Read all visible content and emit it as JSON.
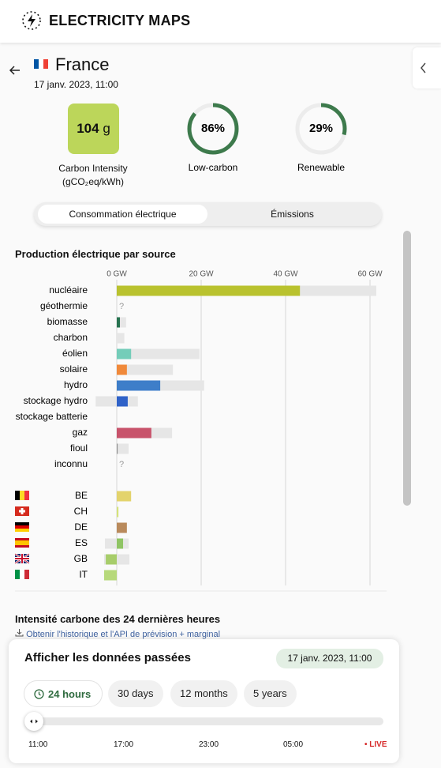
{
  "header": {
    "title": "ELECTRICITY MAPS"
  },
  "zone": {
    "name": "France",
    "datetime": "17 janv. 2023, 11:00"
  },
  "carbon_intensity": {
    "value": 104,
    "unit": "g",
    "label": "Carbon Intensity",
    "unit_label": "(gCO₂eq/kWh)",
    "color": "#bcd65a"
  },
  "low_carbon": {
    "name": "Low-carbon",
    "value": 86,
    "value_label": "86%",
    "color": "#3d7a4c"
  },
  "renewable": {
    "name": "Renewable",
    "value": 29,
    "value_label": "29%",
    "color": "#3d7a4c"
  },
  "tabs": [
    "Consommation électrique",
    "Émissions"
  ],
  "chart_data": {
    "type": "bar",
    "title": "Production électrique par source",
    "categories": [
      "nucléaire",
      "géothermie",
      "biomasse",
      "charbon",
      "éolien",
      "solaire",
      "hydro",
      "stockage hydro",
      "stockage batterie",
      "gaz",
      "fioul",
      "inconnu"
    ],
    "values": [
      43.4,
      null,
      0.75,
      0,
      3.4,
      2.4,
      10.3,
      2.6,
      0,
      8.2,
      0.2,
      null
    ],
    "colors": [
      "#b9c22e",
      "#cccccc",
      "#277350",
      "#555555",
      "#74cdb9",
      "#f0893a",
      "#3e7ec9",
      "#2f62c8",
      "#9ab",
      "#c8536b",
      "#8c8c8c",
      "#aaaaaa"
    ],
    "capacity": [
      [
        0,
        61.5
      ],
      null,
      [
        0,
        2.2
      ],
      [
        0,
        1.8
      ],
      [
        0,
        19.6
      ],
      [
        0,
        13.3
      ],
      [
        0,
        20.7
      ],
      [
        -5.0,
        5.0
      ],
      null,
      [
        0,
        13.1
      ],
      [
        0,
        2.8
      ],
      null
    ],
    "missing_label": "?",
    "capacity_color": "#e6e6e6",
    "xlim": [
      -5,
      62
    ],
    "xticks": [
      {
        "value": 0,
        "label": "0 GW"
      },
      {
        "value": 20,
        "label": "20 GW"
      },
      {
        "value": 40,
        "label": "40 GW"
      },
      {
        "value": 60,
        "label": "60 GW"
      }
    ],
    "grid": true,
    "exchange": {
      "countries": [
        "BE",
        "CH",
        "DE",
        "ES",
        "GB",
        "IT"
      ],
      "values": [
        3.4,
        0.4,
        2.4,
        1.5,
        -2.6,
        -3.0
      ],
      "colors": [
        "#e3d36c",
        "#d5e37a",
        "#b98a5c",
        "#8fc464",
        "#a7cd6a",
        "#b7d97b"
      ],
      "capacity": [
        null,
        null,
        null,
        [
          -2.8,
          2.8
        ],
        [
          -3.0,
          3.0
        ],
        null
      ]
    }
  },
  "history": {
    "title": "Intensité carbone des 24 dernières heures",
    "link": "Obtenir l'historique et l'API de prévision + marginal"
  },
  "time_panel": {
    "title": "Afficher les données passées",
    "datetime": "17 janv. 2023, 11:00",
    "ranges": [
      "24 hours",
      "30 days",
      "12 months",
      "5 years"
    ],
    "time_labels": [
      "11:00",
      "17:00",
      "23:00",
      "05:00"
    ],
    "live": "LIVE"
  }
}
